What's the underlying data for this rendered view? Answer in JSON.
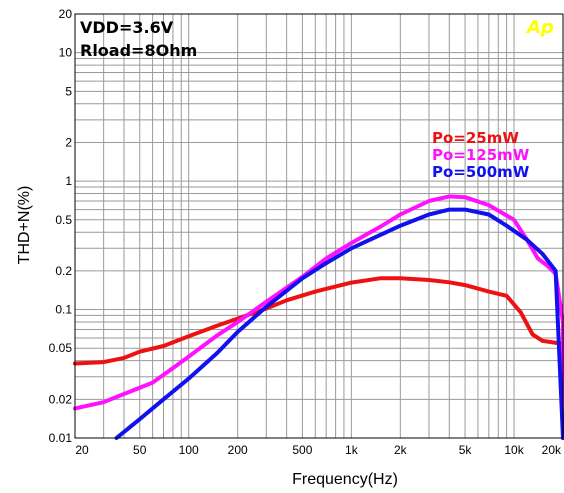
{
  "chart_data": {
    "type": "line",
    "title": "",
    "xlabel": "Frequency(Hz)",
    "ylabel": "THD+N(%)",
    "xscale": "log",
    "yscale": "log",
    "xlim": [
      20,
      20000
    ],
    "ylim": [
      0.01,
      20
    ],
    "grid": true,
    "x_ticks": [
      {
        "value": 20,
        "label": "20"
      },
      {
        "value": 50,
        "label": "50"
      },
      {
        "value": 100,
        "label": "100"
      },
      {
        "value": 200,
        "label": "200"
      },
      {
        "value": 500,
        "label": "500"
      },
      {
        "value": 1000,
        "label": "1k"
      },
      {
        "value": 2000,
        "label": "2k"
      },
      {
        "value": 5000,
        "label": "5k"
      },
      {
        "value": 10000,
        "label": "10k"
      },
      {
        "value": 20000,
        "label": "20k"
      }
    ],
    "y_ticks": [
      {
        "value": 20,
        "label": "20"
      },
      {
        "value": 10,
        "label": "10"
      },
      {
        "value": 5,
        "label": "5"
      },
      {
        "value": 2,
        "label": "2"
      },
      {
        "value": 1,
        "label": "1"
      },
      {
        "value": 0.5,
        "label": "0.5"
      },
      {
        "value": 0.2,
        "label": "0.2"
      },
      {
        "value": 0.1,
        "label": "0.1"
      },
      {
        "value": 0.05,
        "label": "0.05"
      },
      {
        "value": 0.02,
        "label": "0.02"
      },
      {
        "value": 0.01,
        "label": "0.01"
      }
    ],
    "annotations": [
      "VDD=3.6V",
      "Rload=8Ohm"
    ],
    "legend_position": "top-right",
    "logo_text": "Ap",
    "logo_color": "#ffff00",
    "grid_color": "#9a9a9a",
    "series": [
      {
        "name": "Po=25mW",
        "color": "#ee1111",
        "points": [
          [
            20,
            0.038
          ],
          [
            30,
            0.039
          ],
          [
            40,
            0.042
          ],
          [
            50,
            0.047
          ],
          [
            70,
            0.052
          ],
          [
            100,
            0.062
          ],
          [
            150,
            0.075
          ],
          [
            200,
            0.085
          ],
          [
            300,
            0.102
          ],
          [
            400,
            0.118
          ],
          [
            600,
            0.138
          ],
          [
            1000,
            0.162
          ],
          [
            1500,
            0.175
          ],
          [
            2000,
            0.175
          ],
          [
            3000,
            0.17
          ],
          [
            4000,
            0.163
          ],
          [
            5000,
            0.155
          ],
          [
            7000,
            0.138
          ],
          [
            9000,
            0.128
          ],
          [
            11000,
            0.095
          ],
          [
            13000,
            0.064
          ],
          [
            15000,
            0.057
          ],
          [
            20000,
            0.054
          ],
          [
            24000,
            0.054
          ]
        ]
      },
      {
        "name": "Po=125mW",
        "color": "#ff11ff",
        "points": [
          [
            20,
            0.017
          ],
          [
            30,
            0.019
          ],
          [
            40,
            0.022
          ],
          [
            60,
            0.027
          ],
          [
            80,
            0.035
          ],
          [
            100,
            0.043
          ],
          [
            150,
            0.063
          ],
          [
            200,
            0.08
          ],
          [
            300,
            0.115
          ],
          [
            500,
            0.18
          ],
          [
            700,
            0.25
          ],
          [
            1000,
            0.33
          ],
          [
            1500,
            0.44
          ],
          [
            2000,
            0.55
          ],
          [
            3000,
            0.7
          ],
          [
            4000,
            0.76
          ],
          [
            5000,
            0.75
          ],
          [
            7000,
            0.65
          ],
          [
            10000,
            0.5
          ],
          [
            12000,
            0.35
          ],
          [
            14000,
            0.25
          ],
          [
            16000,
            0.22
          ],
          [
            18000,
            0.19
          ],
          [
            20000,
            0.08
          ],
          [
            24000,
            0.01
          ]
        ]
      },
      {
        "name": "Po=500mW",
        "color": "#1111ee",
        "points": [
          [
            36,
            0.01
          ],
          [
            50,
            0.014
          ],
          [
            70,
            0.02
          ],
          [
            100,
            0.029
          ],
          [
            150,
            0.046
          ],
          [
            200,
            0.067
          ],
          [
            300,
            0.105
          ],
          [
            500,
            0.175
          ],
          [
            700,
            0.23
          ],
          [
            1000,
            0.3
          ],
          [
            1500,
            0.38
          ],
          [
            2000,
            0.45
          ],
          [
            3000,
            0.55
          ],
          [
            4000,
            0.6
          ],
          [
            5000,
            0.6
          ],
          [
            7000,
            0.55
          ],
          [
            9000,
            0.45
          ],
          [
            12000,
            0.35
          ],
          [
            15000,
            0.27
          ],
          [
            18000,
            0.2
          ],
          [
            24000,
            0.01
          ]
        ]
      }
    ]
  }
}
